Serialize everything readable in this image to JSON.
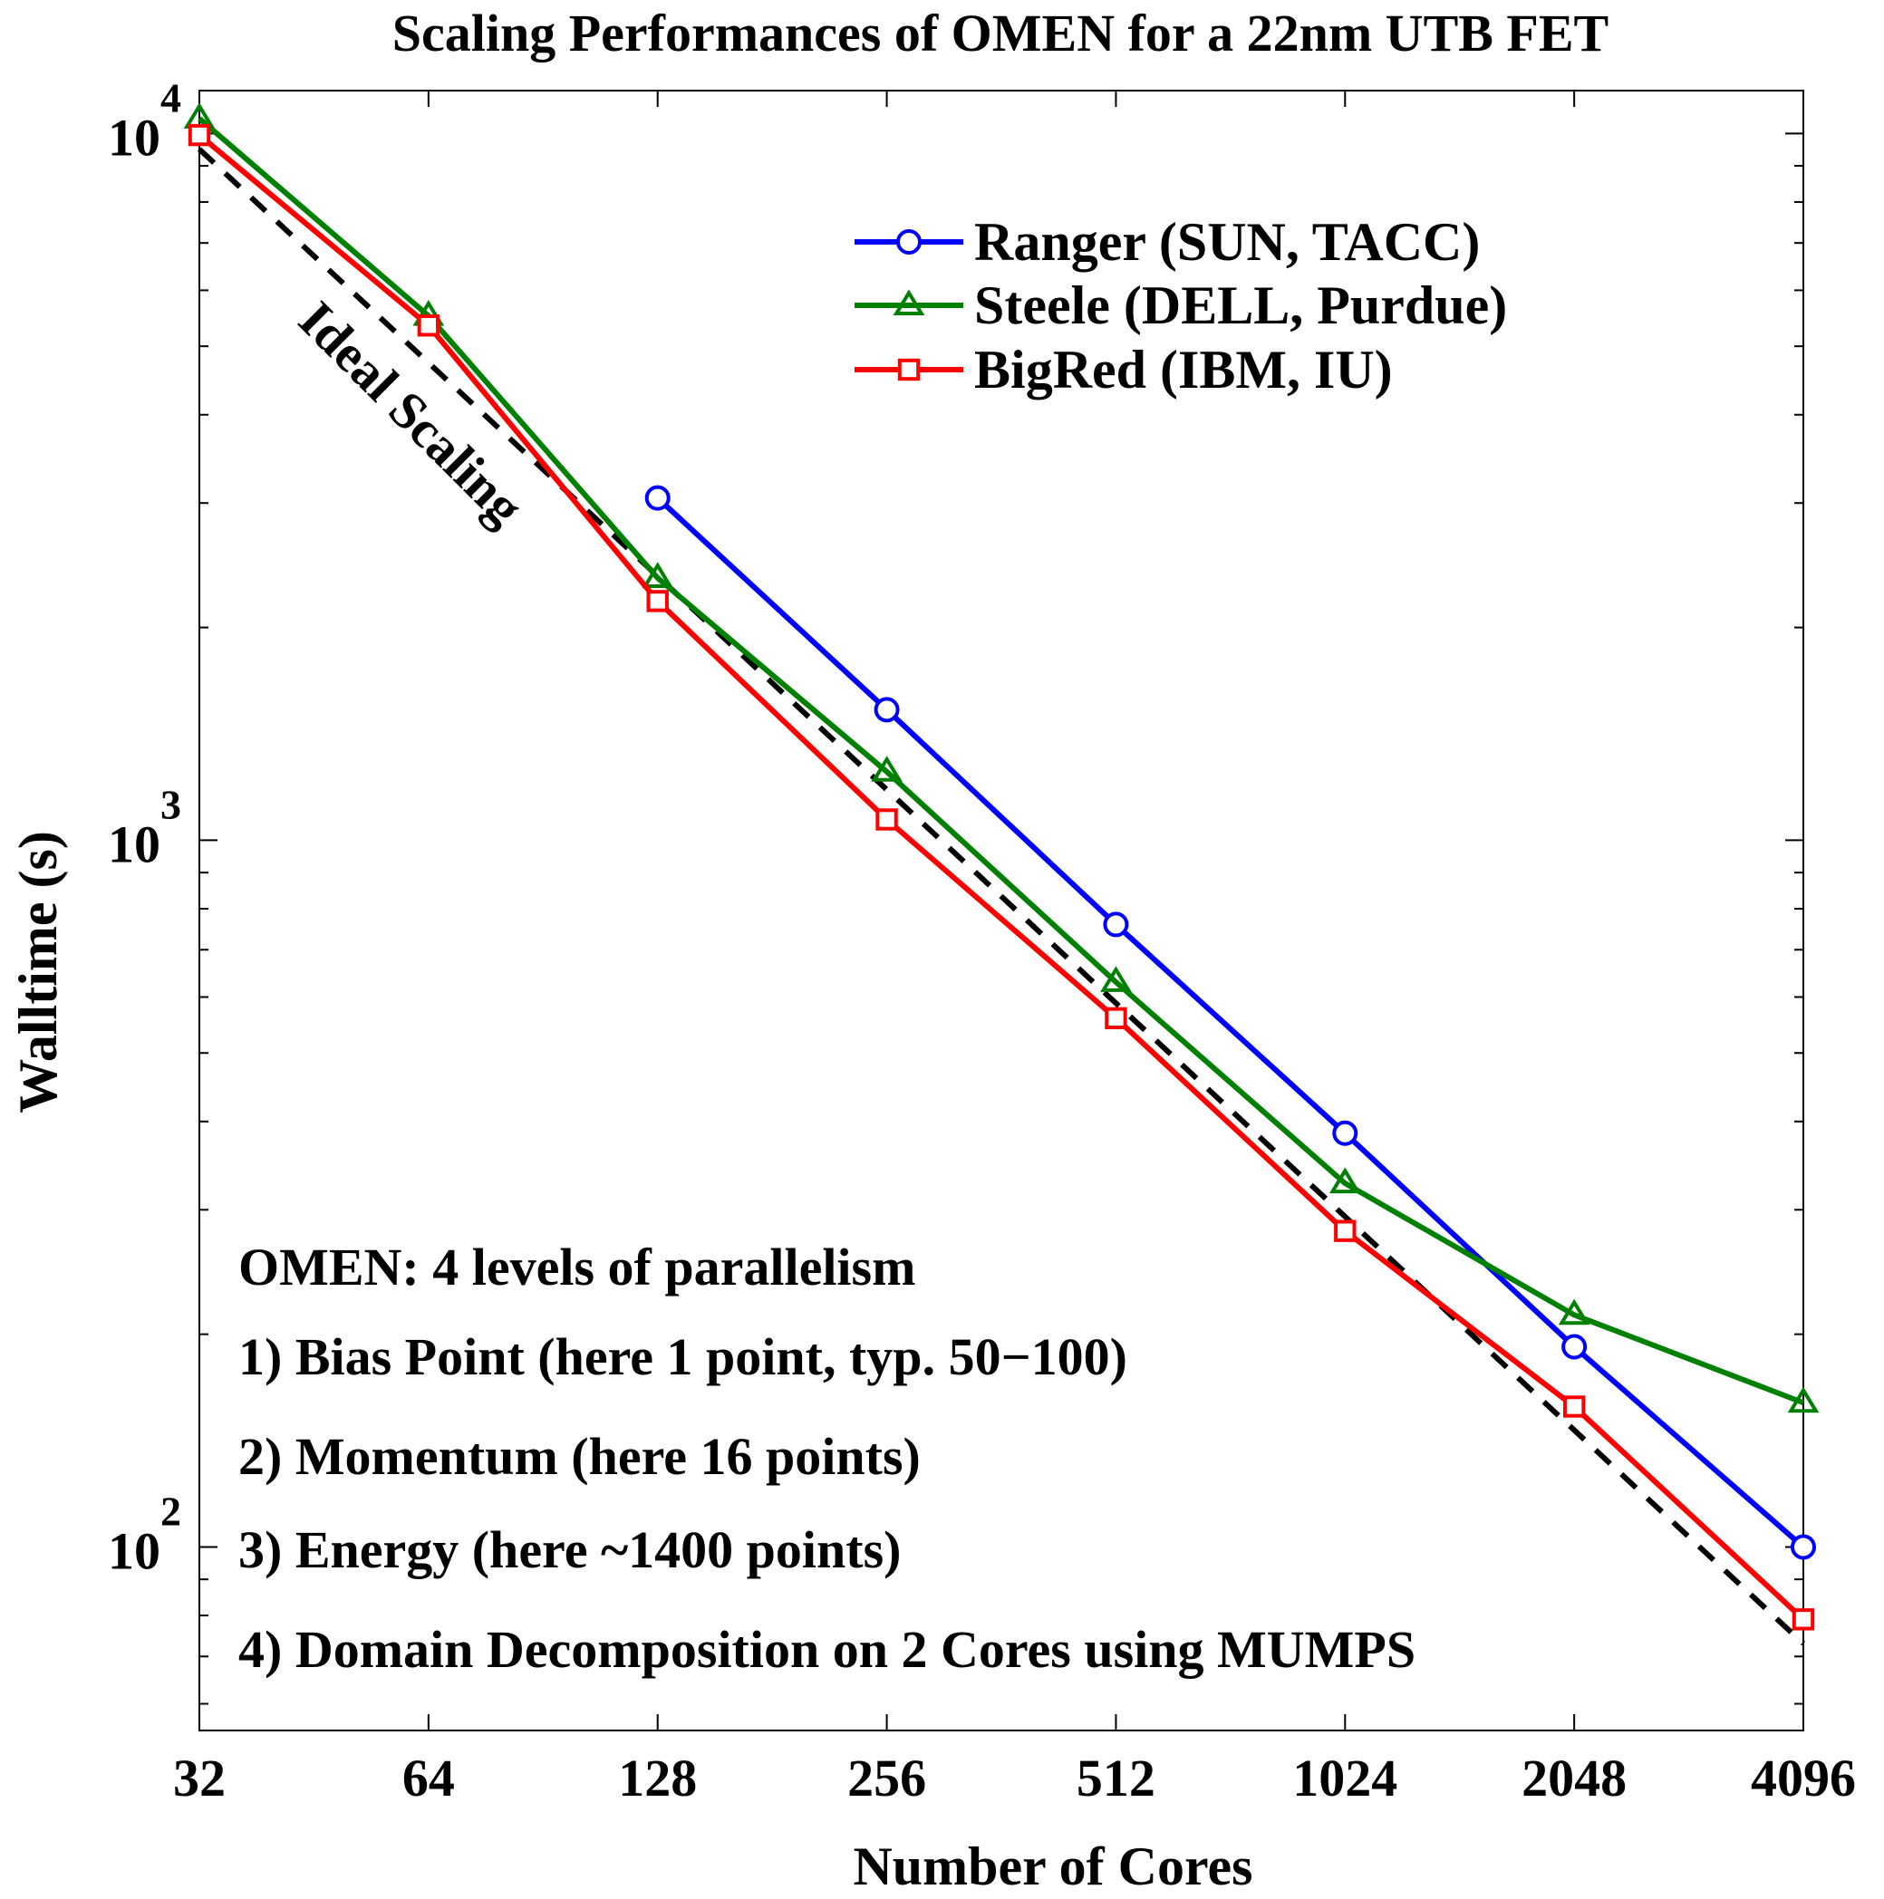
{
  "chart_data": {
    "type": "line",
    "title": "Scaling Performances of OMEN for a 22nm UTB FET",
    "xlabel": "Number of Cores",
    "ylabel": "Walltime (s)",
    "x_scale": "log2",
    "y_scale": "log10",
    "xlim": [
      32,
      4096
    ],
    "ylim": [
      55,
      11500
    ],
    "x_ticks": [
      32,
      64,
      128,
      256,
      512,
      1024,
      2048,
      4096
    ],
    "x_tick_labels": [
      "32",
      "64",
      "128",
      "256",
      "512",
      "1024",
      "2048",
      "4096"
    ],
    "y_ticks": [
      {
        "value": 100,
        "base": "10",
        "exp": "2"
      },
      {
        "value": 1000,
        "base": "10",
        "exp": "3"
      },
      {
        "value": 10000,
        "base": "10",
        "exp": "4"
      }
    ],
    "grid": false,
    "legend_position": "top-right",
    "series": [
      {
        "name": "Ranger (SUN, TACC)",
        "color": "#0000ff",
        "marker": "circle",
        "x": [
          128,
          256,
          512,
          1024,
          2048,
          4096
        ],
        "y": [
          3050,
          1530,
          760,
          385,
          192,
          100
        ]
      },
      {
        "name": "Steele (DELL, Purdue)",
        "color": "#008000",
        "marker": "triangle",
        "x": [
          32,
          64,
          128,
          256,
          512,
          1024,
          2048,
          4096
        ],
        "y": [
          10500,
          5520,
          2350,
          1250,
          630,
          327,
          213,
          160
        ]
      },
      {
        "name": "BigRed (IBM, IU)",
        "color": "#ff0000",
        "marker": "square",
        "x": [
          32,
          64,
          128,
          256,
          512,
          1024,
          2048,
          4096
        ],
        "y": [
          9950,
          5350,
          2180,
          1070,
          560,
          280,
          158,
          79
        ]
      }
    ],
    "ideal_line": {
      "x": [
        32,
        4096
      ],
      "y": [
        9500,
        73
      ],
      "color": "#000000",
      "style": "dashed"
    },
    "annotations": [
      {
        "text": "Ideal Scaling",
        "rotate": 45
      },
      {
        "text": "OMEN: 4 levels of parallelism"
      },
      {
        "text": "1) Bias Point (here 1 point, typ. 50−100)"
      },
      {
        "text": "2) Momentum (here 16 points)"
      },
      {
        "text": "3) Energy (here ~1400 points)"
      },
      {
        "text": "4) Domain Decomposition on 2 Cores using MUMPS"
      }
    ]
  }
}
